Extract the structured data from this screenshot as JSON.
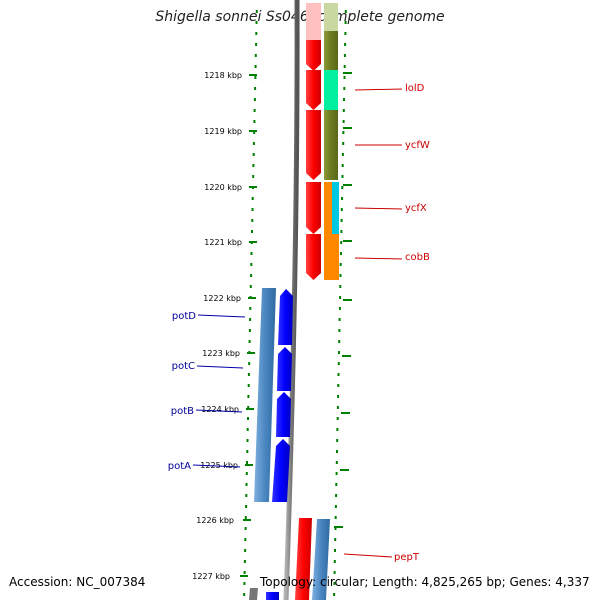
{
  "title": "Shigella sonnei Ss046, complete genome",
  "accession": "Accession: NC_007384",
  "topology": "Topology: circular; Length: 4,825,265 bp; Genes: 4,337",
  "scale_ticks": [
    {
      "label": "1218 kbp"
    },
    {
      "label": "1219 kbp"
    },
    {
      "label": "1220 kbp"
    },
    {
      "label": "1221 kbp"
    },
    {
      "label": "1222 kbp"
    },
    {
      "label": "1223 kbp"
    },
    {
      "label": "1224 kbp"
    },
    {
      "label": "1225 kbp"
    },
    {
      "label": "1226 kbp"
    },
    {
      "label": "1227 kbp"
    }
  ],
  "right_genes": [
    {
      "label": "lolD"
    },
    {
      "label": "ycfW"
    },
    {
      "label": "ycfX"
    },
    {
      "label": "cobB"
    },
    {
      "label": "pepT"
    }
  ],
  "left_genes": [
    {
      "label": "potD"
    },
    {
      "label": "potC"
    },
    {
      "label": "potB"
    },
    {
      "label": "potA"
    }
  ],
  "colors": {
    "forward_cds": "#ff0000",
    "reverse_cds": "#0000ff",
    "forward_label": "#cc0000",
    "reverse_label": "#000099",
    "scale_tick": "#008000",
    "backbone": "#808080",
    "olive": "#6b7a1f",
    "mint": "#00f0a0",
    "orange": "#ff8800",
    "cyan": "#00c8e0",
    "steel": "#4a86c0"
  }
}
